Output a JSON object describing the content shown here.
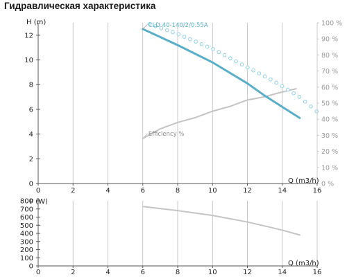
{
  "page": {
    "title": "Гидравлическая характеристика"
  },
  "colors": {
    "head": "#5aaec8",
    "head_dots": "#8fcfe6",
    "efficiency": "#c4c4c4",
    "power": "#c4c4c4",
    "axis": "#555555",
    "grid": "#bbbbbb"
  },
  "chart_data": [
    {
      "type": "line",
      "xlabel": "Q (m3/h)",
      "ylabel": "H (m)",
      "y2label": "",
      "xlim": [
        0,
        16
      ],
      "ylim": [
        0,
        13
      ],
      "y2lim": [
        0,
        100
      ],
      "xticks": [
        0,
        2,
        4,
        6,
        8,
        10,
        12,
        14,
        16
      ],
      "yticks": [
        0,
        2,
        4,
        6,
        8,
        10,
        12
      ],
      "y2ticks": [
        "0 %",
        "10 %",
        "20 %",
        "30 %",
        "40 %",
        "50 %",
        "60 %",
        "70 %",
        "80 %",
        "90 %",
        "100 %"
      ],
      "grid": "vertical",
      "series": [
        {
          "name": "CLD 40-140/2/0.55A",
          "axis": "left",
          "style": "solid",
          "x": [
            6,
            8,
            10,
            12,
            13,
            14,
            15
          ],
          "y": [
            12.5,
            11.2,
            9.8,
            8.1,
            7.1,
            6.2,
            5.3
          ]
        },
        {
          "name": "",
          "axis": "left",
          "style": "dotted",
          "x": [
            6.4,
            8,
            10,
            12,
            13.5,
            15,
            16
          ],
          "y": [
            12.9,
            12.1,
            10.9,
            9.4,
            8.3,
            7.0,
            5.8
          ]
        },
        {
          "name": "Efficiency %",
          "axis": "right",
          "style": "solid",
          "x": [
            6,
            7,
            8,
            9,
            10,
            11,
            12,
            13,
            14,
            14.8
          ],
          "y": [
            28,
            34,
            38,
            41,
            45,
            48,
            52,
            54,
            57,
            59
          ]
        }
      ]
    },
    {
      "type": "line",
      "xlabel": "Q (m3/h)",
      "ylabel": "P (W)",
      "xlim": [
        0,
        16
      ],
      "ylim": [
        0,
        800
      ],
      "xticks": [
        0,
        2,
        4,
        6,
        8,
        10,
        12,
        14,
        16
      ],
      "yticks": [
        0,
        100,
        200,
        300,
        400,
        500,
        600,
        700,
        800
      ],
      "grid": "vertical",
      "series": [
        {
          "name": "",
          "style": "solid",
          "x": [
            6,
            8,
            10,
            12,
            14,
            15
          ],
          "y": [
            730,
            680,
            620,
            540,
            440,
            380
          ]
        }
      ]
    }
  ]
}
